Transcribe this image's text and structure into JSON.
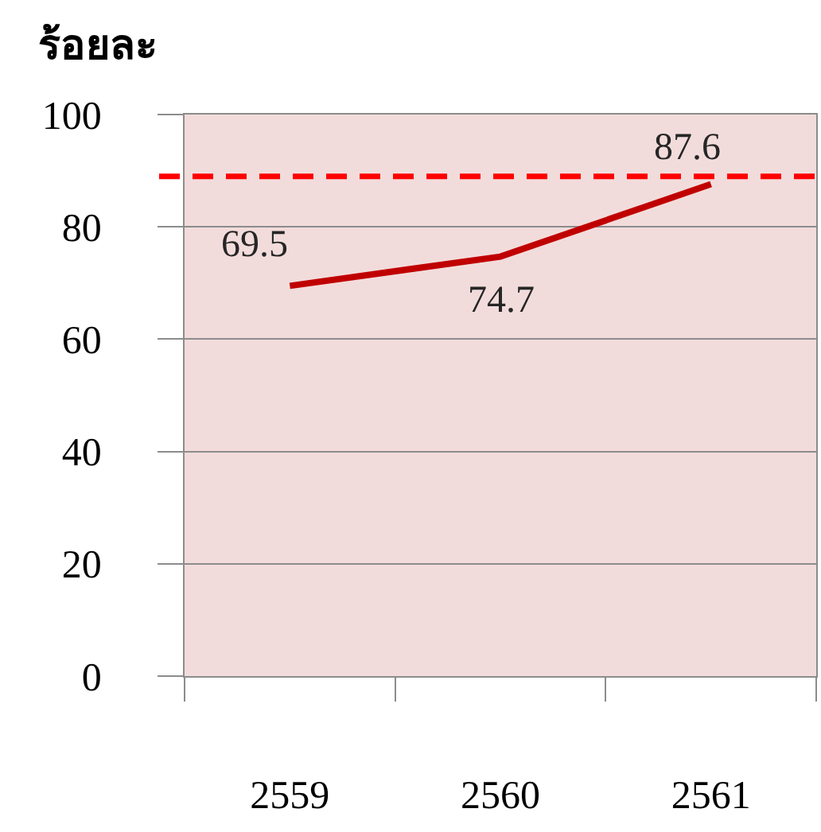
{
  "chart_data": {
    "type": "line",
    "ylabel": "ร้อยละ",
    "categories": [
      "2559",
      "2560",
      "2561"
    ],
    "series": [
      {
        "color": "#c00000",
        "values": [
          69.5,
          74.7,
          87.6
        ]
      }
    ],
    "ylim": [
      0,
      100
    ],
    "yticks": [
      0,
      20,
      40,
      60,
      80,
      100
    ],
    "grid": "y",
    "data_labels": true,
    "line_style": "solid",
    "ref_lines": [
      {
        "axis": "y",
        "value": 89,
        "color": "#ff0000",
        "line_style": "dashed"
      }
    ]
  }
}
